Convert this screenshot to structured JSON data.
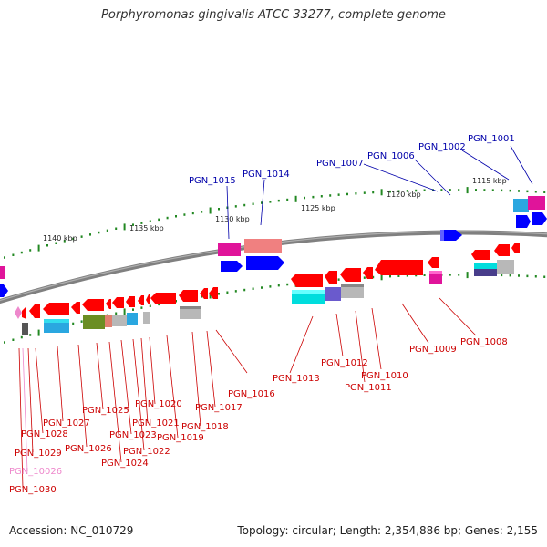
{
  "title": "Porphyromonas gingivalis ATCC 33277, complete genome",
  "footer": {
    "accession": "Accession: NC_010729",
    "topology": "Topology: circular; Length: 2,354,886 bp; Genes: 2,155"
  },
  "scale_labels": [
    "1140 kbp",
    "1135 kbp",
    "1130 kbp",
    "1125 kbp",
    "1120 kbp",
    "1115 kbp"
  ],
  "colors": {
    "forward_label": "#0000aa",
    "reverse_label": "#cc0000",
    "pseudo_label": "#ee88cc",
    "backbone": "#808080",
    "forward_gene": "#0000ff",
    "reverse_gene": "#ff0000",
    "tick": "#228822"
  },
  "forward_genes": [
    "PGN_1015",
    "PGN_1014",
    "PGN_1007",
    "PGN_1006",
    "PGN_1002",
    "PGN_1001"
  ],
  "reverse_genes": [
    "PGN_1027",
    "PGN_1028",
    "PGN_1029",
    "PGN_10026",
    "PGN_1030",
    "PGN_1026",
    "PGN_1025",
    "PGN_1024",
    "PGN_1023",
    "PGN_1022",
    "PGN_1021",
    "PGN_1020",
    "PGN_1019",
    "PGN_1018",
    "PGN_1017",
    "PGN_1016",
    "PGN_1013",
    "PGN_1012",
    "PGN_1011",
    "PGN_1010",
    "PGN_1009",
    "PGN_1008"
  ]
}
